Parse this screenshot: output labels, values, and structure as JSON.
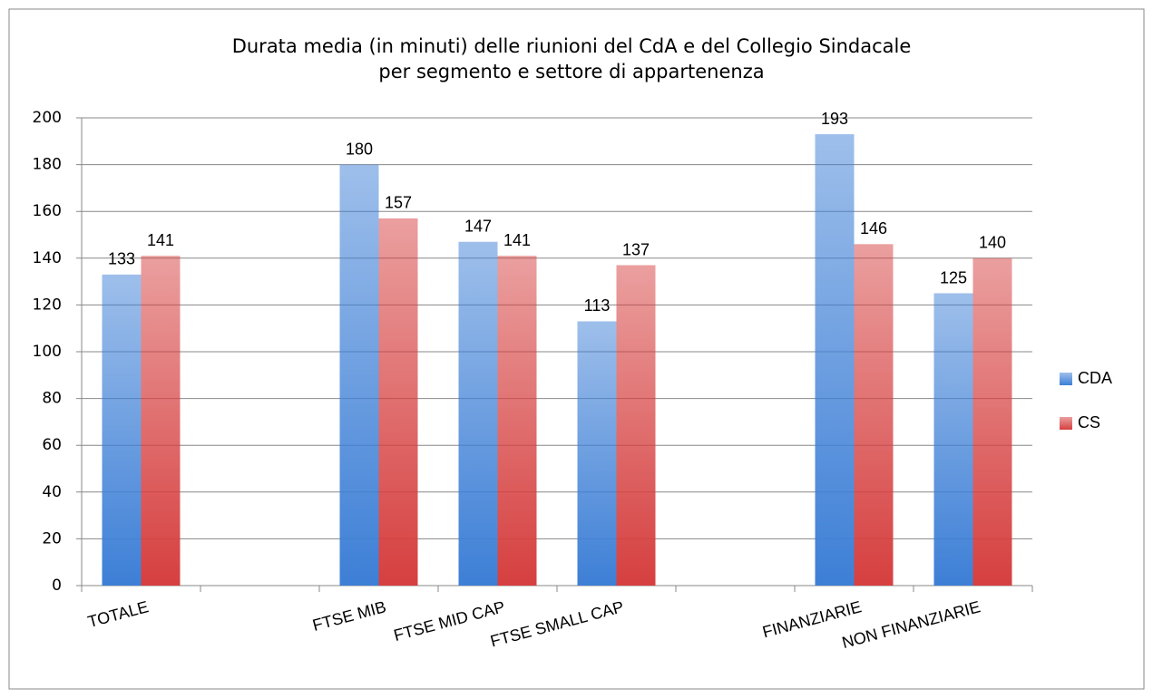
{
  "chart_data": {
    "type": "bar",
    "title": [
      "Durata media (in minuti) delle riunioni del CdA e del Collegio Sindacale",
      "per segmento e settore di appartenenza"
    ],
    "categories": [
      "TOTALE",
      null,
      "FTSE MIB",
      "FTSE MID CAP",
      "FTSE SMALL CAP",
      null,
      "FINANZIARIE",
      "NON FINANZIARIE"
    ],
    "series": [
      {
        "name": "CDA",
        "color": "#3d7fd6",
        "values": [
          133,
          null,
          180,
          147,
          113,
          null,
          193,
          125
        ]
      },
      {
        "name": "CS",
        "color": "#d63f3f",
        "values": [
          141,
          null,
          157,
          141,
          137,
          null,
          146,
          140
        ]
      }
    ],
    "ylim": [
      0,
      200
    ],
    "yticks": [
      0,
      20,
      40,
      60,
      80,
      100,
      120,
      140,
      160,
      180,
      200
    ],
    "grid": true,
    "legend": "right"
  }
}
